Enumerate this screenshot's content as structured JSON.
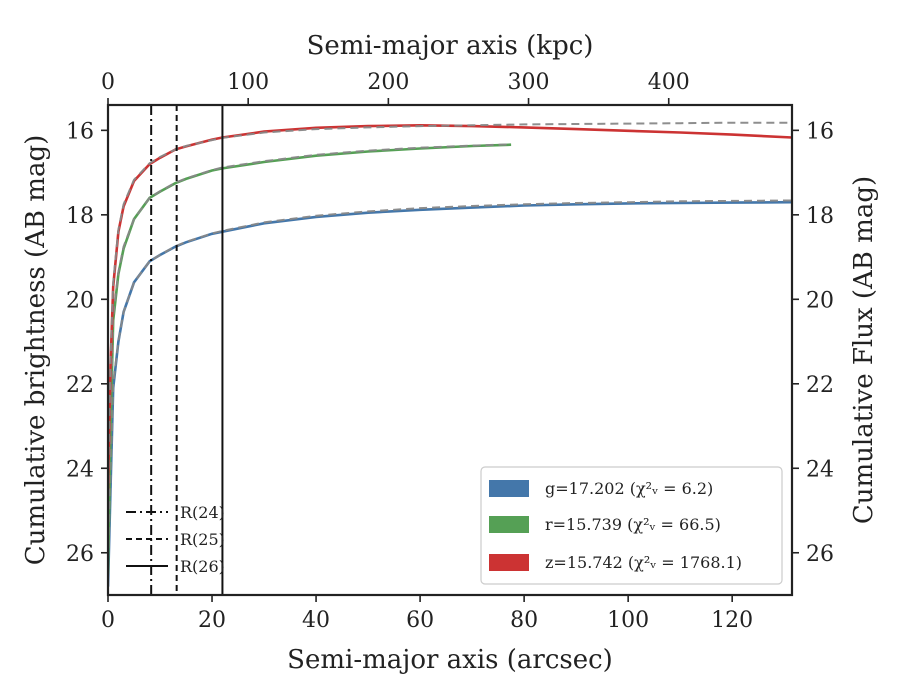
{
  "chart_data": {
    "type": "line",
    "xlabel": "Semi-major axis (arcsec)",
    "top_xlabel": "Semi-major axis (kpc)",
    "ylabel": "Cumulative brightness (AB mag)",
    "right_ylabel": "Cumulative Flux (AB mag)",
    "xlim": [
      0,
      131.5
    ],
    "ylim": [
      27,
      15.4
    ],
    "y_inverted": true,
    "x_ticks": [
      0,
      20,
      40,
      60,
      80,
      100,
      120
    ],
    "top_x_ticks": [
      0,
      100,
      200,
      300,
      400
    ],
    "top_x_tick_positions_arcsec": [
      0,
      26.95,
      53.9,
      80.85,
      107.8
    ],
    "y_ticks": [
      16,
      18,
      20,
      22,
      24,
      26
    ],
    "grid": false,
    "legend_placement": "lower-right",
    "radius_legend_placement": "lower-left",
    "series": [
      {
        "name": "g=17.202 ($\\chi^2_\\nu = 6.2$)",
        "label_html": "g=17.202 (χ²ᵥ = 6.2)",
        "color": "#4477aa",
        "m_tot": 17.67,
        "r_half": 8.0,
        "x": [
          0,
          0.5,
          1,
          2,
          3,
          5,
          8,
          10,
          13,
          15,
          20,
          22,
          30,
          40,
          50,
          60,
          70,
          80,
          90,
          100,
          110,
          120,
          131.5
        ],
        "values": [
          26.8,
          24.4,
          22.1,
          21.0,
          20.3,
          19.6,
          19.1,
          18.95,
          18.75,
          18.65,
          18.45,
          18.4,
          18.2,
          18.05,
          17.95,
          17.88,
          17.83,
          17.78,
          17.75,
          17.73,
          17.72,
          17.71,
          17.7
        ],
        "model": [
          26.5,
          24.2,
          22.0,
          21.0,
          20.3,
          19.6,
          19.1,
          18.95,
          18.74,
          18.64,
          18.44,
          18.38,
          18.18,
          18.02,
          17.92,
          17.84,
          17.79,
          17.75,
          17.72,
          17.7,
          17.68,
          17.67,
          17.66
        ]
      },
      {
        "name": "r=15.739 ($\\chi^2_\\nu = 66.5$)",
        "label_html": "r=15.739 (χ²ᵥ = 66.5)",
        "color": "#55a055",
        "x": [
          0,
          0.5,
          1,
          2,
          3,
          5,
          8,
          10,
          13,
          15,
          20,
          22,
          30,
          40,
          50,
          60,
          70,
          77.5
        ],
        "values": [
          26.5,
          23.0,
          20.5,
          19.4,
          18.8,
          18.1,
          17.6,
          17.45,
          17.25,
          17.15,
          16.95,
          16.9,
          16.75,
          16.6,
          16.5,
          16.43,
          16.37,
          16.34
        ],
        "model": [
          26.2,
          22.8,
          20.4,
          19.35,
          18.75,
          18.1,
          17.6,
          17.44,
          17.24,
          17.14,
          16.94,
          16.88,
          16.73,
          16.58,
          16.48,
          16.41,
          16.36,
          16.33
        ]
      },
      {
        "name": "z=15.742 ($\\chi^2_\\nu = 1768.1$)",
        "label_html": "z=15.742 (χ²ᵥ = 1768.1)",
        "color": "#cc3333",
        "x": [
          0,
          0.5,
          1,
          2,
          3,
          5,
          8,
          10,
          13,
          15,
          20,
          22,
          30,
          40,
          50,
          60,
          70,
          80,
          90,
          100,
          110,
          120,
          131.5
        ],
        "values": [
          24.5,
          21.5,
          19.7,
          18.4,
          17.8,
          17.2,
          16.8,
          16.65,
          16.45,
          16.38,
          16.22,
          16.17,
          16.03,
          15.94,
          15.9,
          15.88,
          15.9,
          15.93,
          15.97,
          16.01,
          16.05,
          16.1,
          16.17
        ],
        "model": [
          24.3,
          21.4,
          19.6,
          18.35,
          17.75,
          17.17,
          16.78,
          16.63,
          16.45,
          16.37,
          16.23,
          16.18,
          16.05,
          15.97,
          15.93,
          15.9,
          15.88,
          15.86,
          15.85,
          15.84,
          15.83,
          15.82,
          15.82
        ]
      }
    ],
    "vertical_lines": [
      {
        "label": "R(24)",
        "x": 8.3,
        "style": "dashdot"
      },
      {
        "label": "R(25)",
        "x": 13.2,
        "style": "dashed"
      },
      {
        "label": "R(26)",
        "x": 22.0,
        "style": "solid"
      }
    ]
  }
}
